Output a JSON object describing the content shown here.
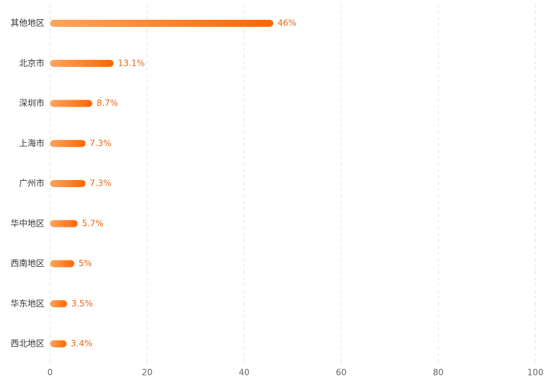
{
  "chart_data": {
    "type": "hbar",
    "categories": [
      "其他地区",
      "北京市",
      "深圳市",
      "上海市",
      "广州市",
      "华中地区",
      "西南地区",
      "华东地区",
      "西北地区"
    ],
    "values": [
      46,
      13.1,
      8.7,
      7.3,
      7.3,
      5.7,
      5,
      3.5,
      3.4
    ],
    "value_labels": [
      "46%",
      "13.1%",
      "8.7%",
      "7.3%",
      "7.3%",
      "5.7%",
      "5%",
      "3.5%",
      "3.4%"
    ],
    "gradient": [
      "#fca55e",
      "#ff6600"
    ],
    "xlim": [
      0,
      100
    ],
    "xticks": [
      0,
      20,
      40,
      60,
      80,
      100
    ],
    "grid": true
  }
}
